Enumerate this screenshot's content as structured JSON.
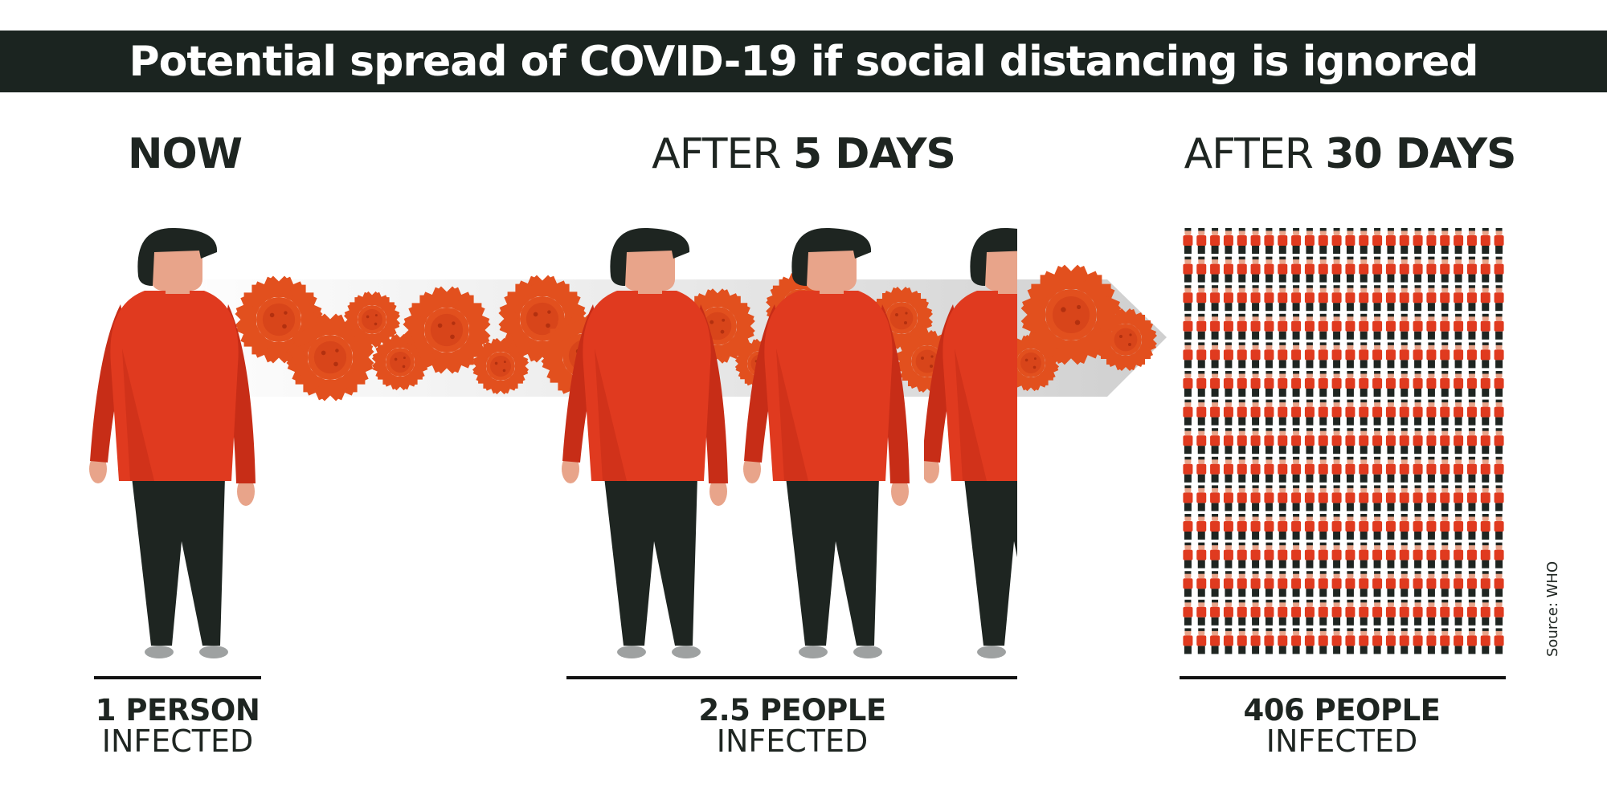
{
  "title": "Potential spread of COVID-19 if social distancing is ignored",
  "stages": [
    {
      "heading_prefix": "",
      "heading_bold": "NOW",
      "count_text": "1 PERSON",
      "status": "INFECTED",
      "people": 1
    },
    {
      "heading_prefix": "AFTER ",
      "heading_bold": "5 DAYS",
      "count_text": "2.5 PEOPLE",
      "status": "INFECTED",
      "people": 2.5
    },
    {
      "heading_prefix": "AFTER ",
      "heading_bold": "30 DAYS",
      "count_text": "406 PEOPLE",
      "status": "INFECTED",
      "people": 406
    }
  ],
  "source": "Source: WHO",
  "colors": {
    "banner": "#1b2420",
    "shirt": "#e03a1f",
    "shirt_shade": "#c72d17",
    "pants": "#1e2521",
    "hair": "#1e2521",
    "skin": "#e8a48a",
    "shoes": "#9ea1a1",
    "virus": "#e2501e",
    "arrow": "#d9d9d9"
  },
  "icons": [
    "person-icon",
    "virus-icon",
    "arrow-icon"
  ]
}
